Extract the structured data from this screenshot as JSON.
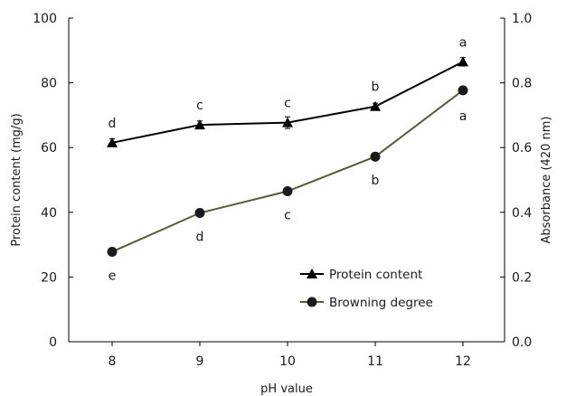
{
  "chart_data": {
    "type": "line",
    "xlabel": "pH value",
    "ylabel_left": "Protein content (mg/g)",
    "ylabel_right": "Absorbance (420 nm)",
    "x": [
      8,
      9,
      10,
      11,
      12
    ],
    "x_tick_labels": [
      "8",
      "9",
      "10",
      "11",
      "12"
    ],
    "ylim_left": [
      0,
      100
    ],
    "ylim_right": [
      0.0,
      1.0
    ],
    "y_ticks_left": [
      "0",
      "20",
      "40",
      "60",
      "80",
      "100"
    ],
    "y_ticks_right": [
      "0.0",
      "0.2",
      "0.4",
      "0.6",
      "0.8",
      "1.0"
    ],
    "grid": false,
    "legend_position": "bottom-right inside plot",
    "series": [
      {
        "name": "Protein content",
        "axis": "left",
        "marker": "triangle",
        "color": "#000000",
        "values": [
          61.5,
          67.0,
          67.7,
          72.7,
          86.5
        ],
        "error": [
          1.2,
          1.2,
          1.8,
          1.0,
          1.3
        ],
        "labels": [
          "d",
          "c",
          "c",
          "b",
          "a"
        ]
      },
      {
        "name": "Browning degree",
        "axis": "right",
        "marker": "circle",
        "color": "#5a5a3a",
        "values": [
          0.278,
          0.398,
          0.465,
          0.572,
          0.777
        ],
        "error": [
          0.008,
          0.008,
          0.01,
          0.01,
          0.012
        ],
        "labels": [
          "e",
          "d",
          "c",
          "b",
          "a"
        ]
      }
    ]
  }
}
